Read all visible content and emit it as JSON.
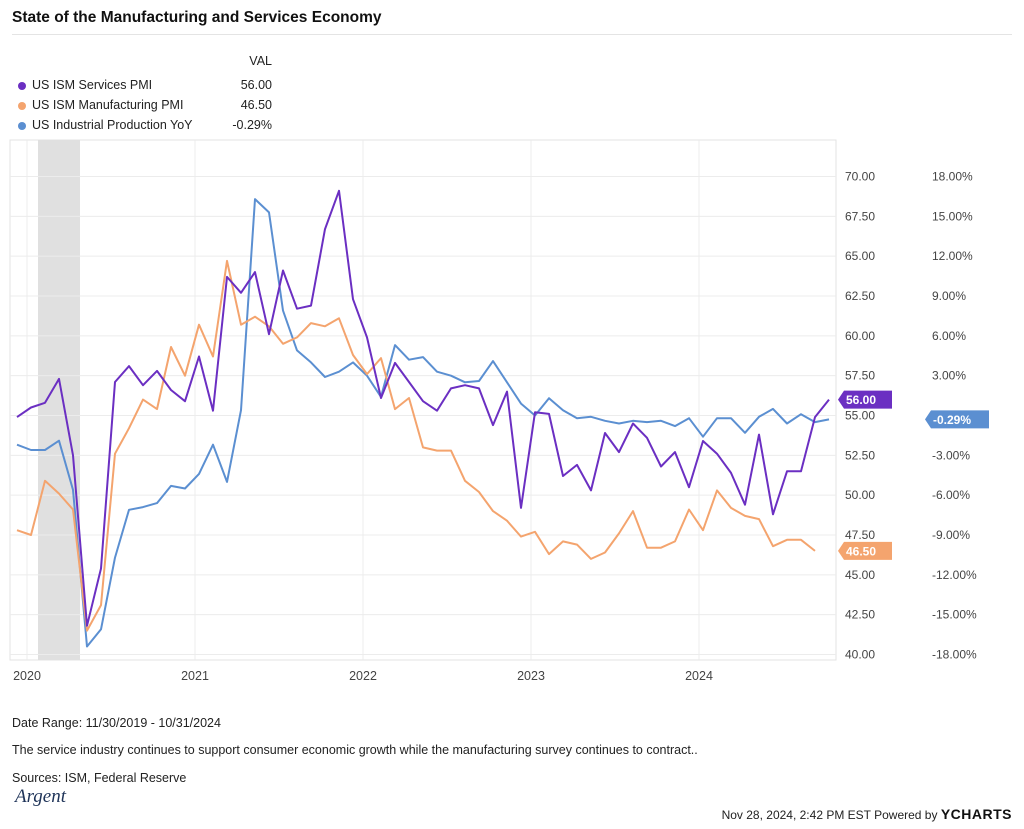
{
  "title": "State of the Manufacturing and Services Economy",
  "legend": {
    "header": "VAL",
    "items": [
      {
        "name": "US ISM Services PMI",
        "value": "56.00",
        "color": "#6b2fc2"
      },
      {
        "name": "US ISM Manufacturing PMI",
        "value": "46.50",
        "color": "#f4a46e"
      },
      {
        "name": "US Industrial Production YoY",
        "value": "-0.29%",
        "color": "#5b8fd1"
      }
    ]
  },
  "chart_data": {
    "type": "line",
    "x_ticks": [
      "2020",
      "2021",
      "2022",
      "2023",
      "2024"
    ],
    "x_range": [
      "2019-12",
      "2024-10"
    ],
    "recession_shading": [
      "2020-02",
      "2020-04"
    ],
    "y_left": {
      "range": [
        40,
        70
      ],
      "ticks": [
        "70.00",
        "67.50",
        "65.00",
        "62.50",
        "60.00",
        "57.50",
        "55.00",
        "52.50",
        "50.00",
        "47.50",
        "45.00",
        "42.50",
        "40.00"
      ]
    },
    "y_right": {
      "range": [
        -18,
        18
      ],
      "ticks": [
        "18.00%",
        "15.00%",
        "12.00%",
        "9.00%",
        "6.00%",
        "3.00%",
        "0.00%",
        "-3.00%",
        "-6.00%",
        "-9.00%",
        "-12.00%",
        "-15.00%",
        "-18.00%"
      ]
    },
    "series": [
      {
        "name": "US ISM Services PMI",
        "axis": "left",
        "color": "#6b2fc2",
        "end_label": "56.00",
        "values": [
          [
            0,
            54.9
          ],
          [
            1,
            55.5
          ],
          [
            2,
            55.8
          ],
          [
            3,
            57.3
          ],
          [
            4,
            52.5
          ],
          [
            5,
            41.8
          ],
          [
            6,
            45.4
          ],
          [
            7,
            57.1
          ],
          [
            8,
            58.1
          ],
          [
            9,
            56.9
          ],
          [
            10,
            57.8
          ],
          [
            11,
            56.6
          ],
          [
            12,
            55.9
          ],
          [
            13,
            58.7
          ],
          [
            14,
            55.3
          ],
          [
            15,
            63.7
          ],
          [
            16,
            62.7
          ],
          [
            17,
            64.0
          ],
          [
            18,
            60.1
          ],
          [
            19,
            64.1
          ],
          [
            20,
            61.7
          ],
          [
            21,
            61.9
          ],
          [
            22,
            66.7
          ],
          [
            23,
            69.1
          ],
          [
            24,
            62.3
          ],
          [
            25,
            59.9
          ],
          [
            26,
            56.1
          ],
          [
            27,
            58.3
          ],
          [
            28,
            57.1
          ],
          [
            29,
            55.9
          ],
          [
            30,
            55.3
          ],
          [
            31,
            56.7
          ],
          [
            32,
            56.9
          ],
          [
            33,
            56.7
          ],
          [
            34,
            54.4
          ],
          [
            35,
            56.5
          ],
          [
            36,
            49.2
          ],
          [
            37,
            55.2
          ],
          [
            38,
            55.1
          ],
          [
            39,
            51.2
          ],
          [
            40,
            51.9
          ],
          [
            41,
            50.3
          ],
          [
            42,
            53.9
          ],
          [
            43,
            52.7
          ],
          [
            44,
            54.5
          ],
          [
            45,
            53.6
          ],
          [
            46,
            51.8
          ],
          [
            47,
            52.7
          ],
          [
            48,
            50.5
          ],
          [
            49,
            53.4
          ],
          [
            50,
            52.6
          ],
          [
            51,
            51.4
          ],
          [
            52,
            49.4
          ],
          [
            53,
            53.8
          ],
          [
            54,
            48.8
          ],
          [
            55,
            51.5
          ],
          [
            56,
            51.5
          ],
          [
            57,
            54.9
          ],
          [
            58,
            56.0
          ]
        ]
      },
      {
        "name": "US ISM Manufacturing PMI",
        "axis": "left",
        "color": "#f4a46e",
        "end_label": "46.50",
        "values": [
          [
            0,
            47.8
          ],
          [
            1,
            47.5
          ],
          [
            2,
            50.9
          ],
          [
            3,
            50.1
          ],
          [
            4,
            49.1
          ],
          [
            5,
            41.5
          ],
          [
            6,
            43.1
          ],
          [
            7,
            52.6
          ],
          [
            8,
            54.2
          ],
          [
            9,
            56.0
          ],
          [
            10,
            55.4
          ],
          [
            11,
            59.3
          ],
          [
            12,
            57.5
          ],
          [
            13,
            60.7
          ],
          [
            14,
            58.7
          ],
          [
            15,
            64.7
          ],
          [
            16,
            60.7
          ],
          [
            17,
            61.2
          ],
          [
            18,
            60.6
          ],
          [
            19,
            59.5
          ],
          [
            20,
            59.9
          ],
          [
            21,
            60.8
          ],
          [
            22,
            60.6
          ],
          [
            23,
            61.1
          ],
          [
            24,
            58.8
          ],
          [
            25,
            57.6
          ],
          [
            26,
            58.6
          ],
          [
            27,
            55.4
          ],
          [
            28,
            56.1
          ],
          [
            29,
            53.0
          ],
          [
            30,
            52.8
          ],
          [
            31,
            52.8
          ],
          [
            32,
            50.9
          ],
          [
            33,
            50.2
          ],
          [
            34,
            49.0
          ],
          [
            35,
            48.4
          ],
          [
            36,
            47.4
          ],
          [
            37,
            47.7
          ],
          [
            38,
            46.3
          ],
          [
            39,
            47.1
          ],
          [
            40,
            46.9
          ],
          [
            41,
            46.0
          ],
          [
            42,
            46.4
          ],
          [
            43,
            47.6
          ],
          [
            44,
            49.0
          ],
          [
            45,
            46.7
          ],
          [
            46,
            46.7
          ],
          [
            47,
            47.1
          ],
          [
            48,
            49.1
          ],
          [
            49,
            47.8
          ],
          [
            50,
            50.3
          ],
          [
            51,
            49.2
          ],
          [
            52,
            48.7
          ],
          [
            53,
            48.5
          ],
          [
            54,
            46.8
          ],
          [
            55,
            47.2
          ],
          [
            56,
            47.2
          ],
          [
            57,
            46.5
          ]
        ]
      },
      {
        "name": "US Industrial Production YoY",
        "axis": "right",
        "color": "#5b8fd1",
        "end_label": "-0.29%",
        "values": [
          [
            0,
            -2.2
          ],
          [
            1,
            -2.6
          ],
          [
            2,
            -2.6
          ],
          [
            3,
            -1.9
          ],
          [
            4,
            -5.6
          ],
          [
            5,
            -17.4
          ],
          [
            6,
            -16.1
          ],
          [
            7,
            -10.7
          ],
          [
            8,
            -7.1
          ],
          [
            9,
            -6.9
          ],
          [
            10,
            -6.6
          ],
          [
            11,
            -5.3
          ],
          [
            12,
            -5.5
          ],
          [
            13,
            -4.4
          ],
          [
            14,
            -2.2
          ],
          [
            15,
            -5.0
          ],
          [
            16,
            0.4
          ],
          [
            17,
            16.3
          ],
          [
            18,
            15.3
          ],
          [
            19,
            7.9
          ],
          [
            20,
            4.9
          ],
          [
            21,
            4.0
          ],
          [
            22,
            2.9
          ],
          [
            23,
            3.3
          ],
          [
            24,
            4.0
          ],
          [
            25,
            3.0
          ],
          [
            26,
            1.4
          ],
          [
            27,
            5.3
          ],
          [
            28,
            4.2
          ],
          [
            29,
            4.4
          ],
          [
            30,
            3.3
          ],
          [
            31,
            3.0
          ],
          [
            32,
            2.5
          ],
          [
            33,
            2.6
          ],
          [
            34,
            4.1
          ],
          [
            35,
            2.5
          ],
          [
            36,
            0.9
          ],
          [
            37,
            0.0
          ],
          [
            38,
            1.3
          ],
          [
            39,
            0.4
          ],
          [
            40,
            -0.2
          ],
          [
            41,
            -0.1
          ],
          [
            42,
            -0.4
          ],
          [
            43,
            -0.6
          ],
          [
            44,
            -0.4
          ],
          [
            45,
            -0.5
          ],
          [
            46,
            -0.4
          ],
          [
            47,
            -0.8
          ],
          [
            48,
            -0.2
          ],
          [
            49,
            -1.6
          ],
          [
            50,
            -0.2
          ],
          [
            51,
            -0.2
          ],
          [
            52,
            -1.3
          ],
          [
            53,
            -0.1
          ],
          [
            54,
            0.5
          ],
          [
            55,
            -0.6
          ],
          [
            56,
            0.1
          ],
          [
            57,
            -0.5
          ],
          [
            58,
            -0.29
          ]
        ]
      }
    ]
  },
  "footer": {
    "date_range": "Date Range: 11/30/2019 - 10/31/2024",
    "note": "The service industry continues to support consumer economic growth while the manufacturing survey continues to contract..",
    "sources": "Sources: ISM, Federal Reserve",
    "logo_text": "Argent",
    "credit": "Nov 28, 2024, 2:42 PM EST Powered by",
    "brand": "YCHARTS"
  }
}
